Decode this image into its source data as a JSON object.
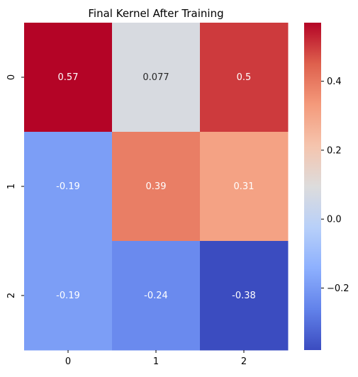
{
  "chart_data": {
    "type": "heatmap",
    "title": "Final Kernel After Training",
    "xlabel": "",
    "ylabel": "",
    "x_categories": [
      "0",
      "1",
      "2"
    ],
    "y_categories": [
      "0",
      "1",
      "2"
    ],
    "values": [
      [
        0.57,
        0.077,
        0.5
      ],
      [
        -0.19,
        0.39,
        0.31
      ],
      [
        -0.19,
        -0.24,
        -0.38
      ]
    ],
    "value_labels": [
      [
        "0.57",
        "0.077",
        "0.5"
      ],
      [
        "-0.19",
        "0.39",
        "0.31"
      ],
      [
        "-0.19",
        "-0.24",
        "-0.38"
      ]
    ],
    "colormap": "coolwarm",
    "color_range": [
      -0.38,
      0.57
    ],
    "colorbar": {
      "ticks": [
        -0.2,
        0.0,
        0.2,
        0.4
      ],
      "tick_labels": [
        "−0.2",
        "0.0",
        "0.2",
        "0.4"
      ]
    },
    "grid": false,
    "legend": "colorbar-right"
  }
}
